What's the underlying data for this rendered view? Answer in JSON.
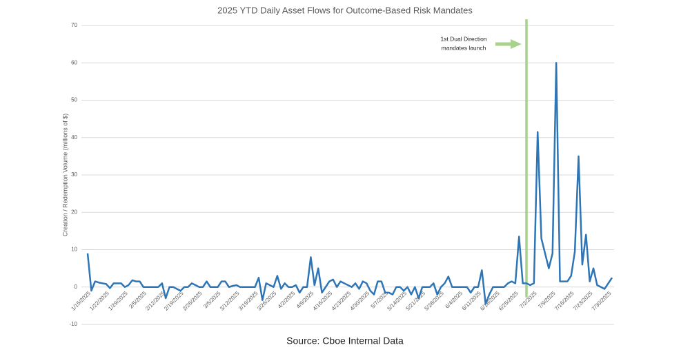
{
  "chart_data": {
    "type": "line",
    "title": "2025 YTD Daily Asset Flows for Outcome-Based Risk Mandates",
    "y_label": "Creation / Redemption Volume (millions of $)",
    "source": "Source: Cboe Internal Data",
    "annotation": [
      "1st Dual Direction",
      "mandates launch"
    ],
    "annotation_color": "#a9d18e",
    "color": "#2e75b6",
    "grid": true,
    "ylim": [
      -10,
      70
    ],
    "yticks": [
      -10,
      0,
      10,
      20,
      30,
      40,
      50,
      60,
      70
    ],
    "categories": [
      "1/15/2025",
      null,
      null,
      null,
      null,
      "1/22/2025",
      null,
      null,
      null,
      null,
      "1/29/2025",
      null,
      null,
      null,
      null,
      "2/5/2025",
      null,
      null,
      null,
      null,
      "2/12/2025",
      null,
      null,
      null,
      null,
      "2/19/2025",
      null,
      null,
      null,
      null,
      "2/26/2025",
      null,
      null,
      null,
      null,
      "3/5/2025",
      null,
      null,
      null,
      null,
      "3/12/2025",
      null,
      null,
      null,
      null,
      "3/19/2025",
      null,
      null,
      null,
      null,
      "3/26/2025",
      null,
      null,
      null,
      null,
      "4/2/2025",
      null,
      null,
      null,
      null,
      "4/9/2025",
      null,
      null,
      null,
      null,
      "4/16/2025",
      null,
      null,
      null,
      null,
      "4/23/2025",
      null,
      null,
      null,
      null,
      "4/30/2025",
      null,
      null,
      null,
      null,
      "5/7/2025",
      null,
      null,
      null,
      null,
      "5/14/2025",
      null,
      null,
      null,
      null,
      "5/21/2025",
      null,
      null,
      null,
      null,
      "5/28/2025",
      null,
      null,
      null,
      null,
      "6/4/2025",
      null,
      null,
      null,
      null,
      "6/11/2025",
      null,
      null,
      null,
      null,
      "6/18/2025",
      null,
      null,
      null,
      null,
      "6/25/2025",
      null,
      null,
      null,
      null,
      "7/2/2025",
      null,
      null,
      null,
      null,
      "7/9/2025",
      null,
      null,
      null,
      null,
      "7/16/2025",
      null,
      null,
      null,
      null,
      "7/23/2025",
      null,
      null,
      null,
      null,
      "7/30/2025",
      null
    ],
    "values": [
      9,
      -1,
      1.5,
      1.2,
      1,
      0.8,
      -0.3,
      1,
      1,
      1,
      0,
      0.5,
      1.8,
      1.5,
      1.5,
      0,
      0,
      0,
      0,
      0,
      1,
      -3,
      0,
      0,
      -0.5,
      -1,
      0,
      0,
      1,
      0.5,
      0,
      0,
      1.5,
      0,
      0,
      0,
      1.5,
      1.5,
      0,
      0.3,
      0.5,
      0,
      0,
      0,
      0,
      0,
      2.5,
      -3.5,
      1,
      0.5,
      0,
      3,
      -0.5,
      1,
      0,
      0,
      0.5,
      -1.5,
      0,
      0,
      8,
      0.5,
      5,
      -1.5,
      0,
      1.5,
      2,
      0,
      1.5,
      1,
      0.5,
      0,
      1,
      -0.5,
      1.5,
      1,
      -1,
      -2,
      1.5,
      1.5,
      -1.5,
      -1.5,
      -2,
      0,
      0,
      -1,
      0,
      -2,
      0,
      -3,
      0,
      0,
      0,
      1,
      -2,
      0,
      1,
      2.8,
      0,
      0,
      0,
      0,
      0,
      -1.5,
      0,
      0,
      4.5,
      -4.5,
      -2,
      0,
      0,
      0,
      0,
      1,
      1.5,
      1,
      13.5,
      1,
      1,
      0.5,
      1,
      41.5,
      13,
      9,
      5,
      9,
      60,
      1.5,
      1.5,
      1.5,
      3,
      9.5,
      35,
      6,
      14,
      1.5,
      5,
      0.5,
      0,
      -0.5,
      1,
      2.5
    ]
  }
}
